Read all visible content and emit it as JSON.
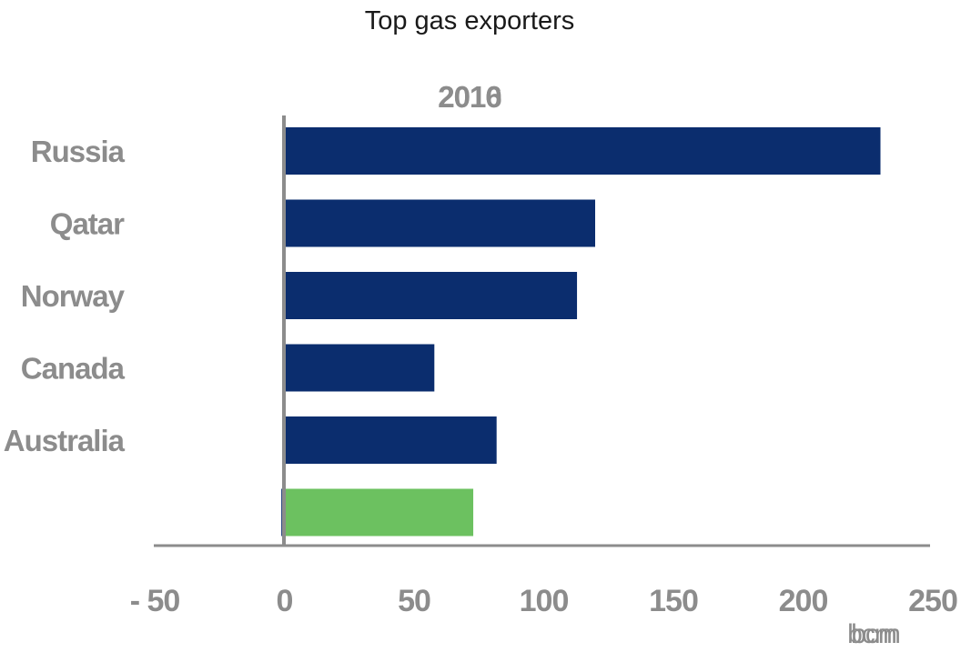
{
  "chart_data": {
    "type": "bar",
    "orientation": "horizontal",
    "title": "Top gas exporters",
    "year_labels": [
      "2010",
      "2016"
    ],
    "categories": [
      "Russia",
      "Qatar",
      "Norway",
      "Canada",
      "Australia",
      ""
    ],
    "series": [
      {
        "values": [
          0,
          0,
          0,
          0,
          0,
          -1
        ],
        "color": "#0b2d6e"
      },
      {
        "values": [
          230,
          120,
          113,
          58,
          82,
          73
        ],
        "color": "#0b2d6e"
      }
    ],
    "highlight_color": "#6cc160",
    "x_ticks": [
      "- 50",
      "0",
      "50",
      "100",
      "150",
      "200",
      "250"
    ],
    "xlim": [
      -50,
      250
    ],
    "xlabel_overlap": [
      "bcm",
      "bcm"
    ],
    "axis_color": "#8c8c8c",
    "legend": "none",
    "grid": false
  }
}
